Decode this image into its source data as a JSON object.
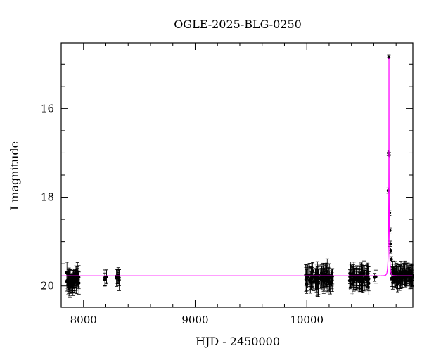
{
  "chart_data": {
    "type": "scatter",
    "title": "OGLE-2025-BLG-0250",
    "xlabel": "HJD - 2450000",
    "ylabel": "I magnitude",
    "xlim": [
      7800,
      10950
    ],
    "ylim": [
      20.48,
      14.52
    ],
    "y_inverted": true,
    "x_ticks": [
      8000,
      9000,
      10000
    ],
    "y_ticks": [
      16,
      18,
      20
    ],
    "grid": false,
    "legend": "none",
    "colors": {
      "data": "#000000",
      "model": "#ff00ff",
      "axes": "#000000"
    },
    "model": {
      "baseline_mag": 19.77,
      "t0": 10736,
      "peak_mag": 14.85,
      "tE": 9.5
    },
    "observation_groups": [
      {
        "x_range": [
          7840,
          7960
        ],
        "mean_mag": 19.87,
        "scatter": 0.22,
        "error": 0.22,
        "count": 55
      },
      {
        "x_range": [
          8190,
          8210
        ],
        "mean_mag": 19.78,
        "scatter": 0.1,
        "error": 0.2,
        "count": 5
      },
      {
        "x_range": [
          8295,
          8320
        ],
        "mean_mag": 19.78,
        "scatter": 0.15,
        "error": 0.2,
        "count": 8
      },
      {
        "x_range": [
          9990,
          10230
        ],
        "mean_mag": 19.82,
        "scatter": 0.2,
        "error": 0.25,
        "count": 75
      },
      {
        "x_range": [
          10380,
          10560
        ],
        "mean_mag": 19.82,
        "scatter": 0.18,
        "error": 0.25,
        "count": 60
      },
      {
        "x_range": [
          10600,
          10620
        ],
        "mean_mag": 19.8,
        "scatter": 0.05,
        "error": 0.15,
        "count": 2
      },
      {
        "x_range": [
          10760,
          10950
        ],
        "mean_mag": 19.78,
        "scatter": 0.18,
        "error": 0.22,
        "count": 70
      }
    ],
    "event_points": [
      {
        "x": 10730,
        "y": 17.85
      },
      {
        "x": 10732,
        "y": 17.0
      },
      {
        "x": 10735,
        "y": 14.85
      },
      {
        "x": 10738,
        "y": 17.05
      },
      {
        "x": 10741,
        "y": 18.35
      },
      {
        "x": 10744,
        "y": 18.75
      },
      {
        "x": 10748,
        "y": 19.05
      },
      {
        "x": 10752,
        "y": 19.2
      },
      {
        "x": 10757,
        "y": 19.4
      }
    ]
  }
}
